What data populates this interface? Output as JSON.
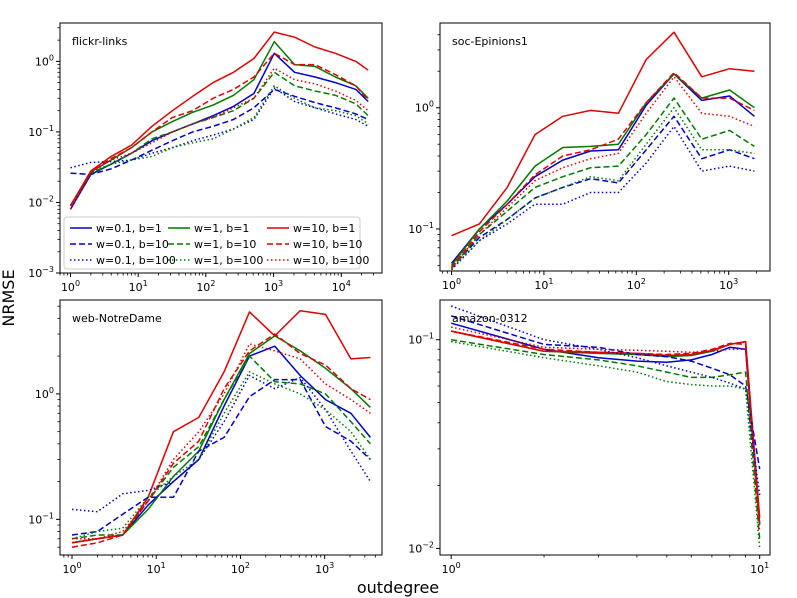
{
  "figure": {
    "ylabel": "NRMSE",
    "xlabel": "outdegree",
    "colors": {
      "w0.1": "#0000cc",
      "w1": "#007a00",
      "w10": "#e00000"
    }
  },
  "chart_data": [
    {
      "type": "line",
      "title": "flickr-links",
      "xscale": "log",
      "yscale": "log",
      "xlim": [
        0.7,
        40000
      ],
      "ylim": [
        0.001,
        3.5
      ],
      "xticks": [
        1,
        10,
        100,
        1000,
        10000
      ],
      "yticks": [
        0.001,
        0.01,
        0.1,
        1
      ],
      "xticklabels": [
        [
          "10",
          "0"
        ],
        [
          "10",
          "1"
        ],
        [
          "10",
          "2"
        ],
        [
          "10",
          "3"
        ],
        [
          "10",
          "4"
        ]
      ],
      "yticklabels": [
        [
          "10",
          "−3"
        ],
        [
          "10",
          "−2"
        ],
        [
          "10",
          "−1"
        ],
        [
          "10",
          "0"
        ]
      ],
      "x": [
        1,
        2,
        4,
        8,
        16,
        32,
        64,
        128,
        256,
        512,
        1024,
        2048,
        4096,
        8192,
        16384,
        25000
      ],
      "legend": {
        "location": "lower-left",
        "ncol": 3
      },
      "series": [
        {
          "name": "w=0.1, b=1",
          "color": "#0000cc",
          "dash": "solid",
          "values": [
            0.008,
            0.025,
            0.035,
            0.05,
            0.075,
            0.1,
            0.13,
            0.17,
            0.23,
            0.35,
            1.3,
            0.7,
            0.6,
            0.5,
            0.4,
            0.27
          ]
        },
        {
          "name": "w=1, b=1",
          "color": "#007a00",
          "dash": "solid",
          "values": [
            0.009,
            0.027,
            0.04,
            0.06,
            0.1,
            0.14,
            0.19,
            0.24,
            0.33,
            0.55,
            1.9,
            0.9,
            0.85,
            0.6,
            0.45,
            0.3
          ]
        },
        {
          "name": "w=10, b=1",
          "color": "#e00000",
          "dash": "solid",
          "values": [
            0.009,
            0.028,
            0.045,
            0.065,
            0.12,
            0.2,
            0.32,
            0.5,
            0.7,
            1.1,
            2.6,
            2.2,
            1.6,
            1.3,
            1.0,
            0.75
          ]
        },
        {
          "name": "w=0.1, b=10",
          "color": "#0000cc",
          "dash": "dashed",
          "values": [
            0.026,
            0.025,
            0.03,
            0.04,
            0.055,
            0.075,
            0.1,
            0.12,
            0.15,
            0.22,
            0.4,
            0.32,
            0.26,
            0.22,
            0.18,
            0.15
          ]
        },
        {
          "name": "w=1, b=10",
          "color": "#007a00",
          "dash": "dashed",
          "values": [
            0.009,
            0.026,
            0.035,
            0.05,
            0.08,
            0.1,
            0.13,
            0.16,
            0.2,
            0.3,
            0.7,
            0.45,
            0.38,
            0.33,
            0.25,
            0.17
          ]
        },
        {
          "name": "w=10, b=10",
          "color": "#e00000",
          "dash": "dashed",
          "values": [
            0.009,
            0.027,
            0.042,
            0.06,
            0.1,
            0.16,
            0.2,
            0.3,
            0.4,
            0.6,
            1.3,
            0.9,
            0.9,
            0.65,
            0.45,
            0.28
          ]
        },
        {
          "name": "w=0.1, b=100",
          "color": "#0000cc",
          "dash": "dotted",
          "values": [
            0.031,
            0.037,
            0.038,
            0.04,
            0.05,
            0.06,
            0.075,
            0.09,
            0.11,
            0.15,
            0.42,
            0.27,
            0.22,
            0.18,
            0.15,
            0.12
          ]
        },
        {
          "name": "w=1, b=100",
          "color": "#007a00",
          "dash": "dotted",
          "values": [
            0.008,
            0.027,
            0.035,
            0.04,
            0.045,
            0.06,
            0.07,
            0.08,
            0.11,
            0.16,
            0.45,
            0.3,
            0.22,
            0.2,
            0.17,
            0.13
          ]
        },
        {
          "name": "w=10, b=100",
          "color": "#e00000",
          "dash": "dotted",
          "values": [
            0.008,
            0.027,
            0.04,
            0.05,
            0.07,
            0.1,
            0.13,
            0.16,
            0.22,
            0.3,
            0.8,
            0.55,
            0.48,
            0.38,
            0.28,
            0.2
          ]
        }
      ]
    },
    {
      "type": "line",
      "title": "soc-Epinions1",
      "xscale": "log",
      "yscale": "log",
      "xlim": [
        0.75,
        2800
      ],
      "ylim": [
        0.045,
        5
      ],
      "xticks": [
        1,
        10,
        100,
        1000
      ],
      "yticks": [
        0.1,
        1
      ],
      "xticklabels": [
        [
          "10",
          "0"
        ],
        [
          "10",
          "1"
        ],
        [
          "10",
          "2"
        ],
        [
          "10",
          "3"
        ]
      ],
      "yticklabels": [
        [
          "10",
          "−1"
        ],
        [
          "10",
          "0"
        ]
      ],
      "x": [
        1,
        2,
        4,
        8,
        16,
        32,
        64,
        128,
        256,
        512,
        1024,
        1900
      ],
      "series": [
        {
          "name": "w=0.1, b=1",
          "color": "#0000cc",
          "dash": "solid",
          "values": [
            0.052,
            0.1,
            0.16,
            0.27,
            0.37,
            0.44,
            0.45,
            1.05,
            1.9,
            1.15,
            1.25,
            0.85
          ]
        },
        {
          "name": "w=1, b=1",
          "color": "#007a00",
          "dash": "solid",
          "values": [
            0.05,
            0.1,
            0.17,
            0.33,
            0.47,
            0.48,
            0.5,
            1.1,
            1.9,
            1.2,
            1.4,
            1.0
          ]
        },
        {
          "name": "w=10, b=1",
          "color": "#e00000",
          "dash": "solid",
          "values": [
            0.088,
            0.11,
            0.22,
            0.6,
            0.85,
            0.95,
            0.9,
            2.5,
            4.2,
            1.8,
            2.1,
            2.0
          ]
        },
        {
          "name": "w=0.1, b=10",
          "color": "#0000cc",
          "dash": "dashed",
          "values": [
            0.048,
            0.085,
            0.12,
            0.18,
            0.22,
            0.26,
            0.24,
            0.45,
            0.85,
            0.38,
            0.45,
            0.38
          ]
        },
        {
          "name": "w=1, b=10",
          "color": "#007a00",
          "dash": "dashed",
          "values": [
            0.047,
            0.09,
            0.14,
            0.22,
            0.27,
            0.32,
            0.33,
            0.6,
            1.2,
            0.55,
            0.65,
            0.48
          ]
        },
        {
          "name": "w=10, b=10",
          "color": "#e00000",
          "dash": "dashed",
          "values": [
            0.048,
            0.095,
            0.16,
            0.28,
            0.4,
            0.45,
            0.55,
            1.1,
            1.95,
            1.2,
            1.2,
            0.95
          ]
        },
        {
          "name": "w=0.1, b=100",
          "color": "#0000cc",
          "dash": "dotted",
          "values": [
            0.046,
            0.08,
            0.11,
            0.16,
            0.16,
            0.2,
            0.2,
            0.35,
            0.7,
            0.3,
            0.33,
            0.3
          ]
        },
        {
          "name": "w=1, b=100",
          "color": "#007a00",
          "dash": "dotted",
          "values": [
            0.047,
            0.08,
            0.12,
            0.18,
            0.22,
            0.27,
            0.25,
            0.5,
            1.0,
            0.45,
            0.45,
            0.42
          ]
        },
        {
          "name": "w=10, b=100",
          "color": "#e00000",
          "dash": "dotted",
          "values": [
            0.048,
            0.09,
            0.15,
            0.25,
            0.32,
            0.38,
            0.42,
            0.9,
            1.8,
            0.9,
            0.85,
            0.7
          ]
        }
      ]
    },
    {
      "type": "line",
      "title": "web-NotreDame",
      "xscale": "log",
      "yscale": "log",
      "xlim": [
        0.72,
        4800
      ],
      "ylim": [
        0.052,
        5.6
      ],
      "xticks": [
        1,
        10,
        100,
        1000
      ],
      "yticks": [
        0.1,
        1
      ],
      "xticklabels": [
        [
          "10",
          "0"
        ],
        [
          "10",
          "1"
        ],
        [
          "10",
          "2"
        ],
        [
          "10",
          "3"
        ]
      ],
      "yticklabels": [
        [
          "10",
          "−1"
        ],
        [
          "10",
          "0"
        ]
      ],
      "x": [
        1,
        2,
        4,
        8,
        16,
        32,
        64,
        128,
        256,
        512,
        1024,
        2048,
        3500
      ],
      "series": [
        {
          "name": "w=0.1, b=1",
          "color": "#0000cc",
          "dash": "solid",
          "values": [
            0.065,
            0.07,
            0.075,
            0.13,
            0.2,
            0.3,
            0.8,
            2.0,
            2.4,
            1.4,
            0.9,
            0.7,
            0.45
          ]
        },
        {
          "name": "w=1, b=1",
          "color": "#007a00",
          "dash": "solid",
          "values": [
            0.065,
            0.07,
            0.075,
            0.12,
            0.22,
            0.35,
            0.9,
            2.1,
            2.9,
            2.2,
            1.6,
            1.1,
            0.78
          ]
        },
        {
          "name": "w=10, b=1",
          "color": "#e00000",
          "dash": "solid",
          "values": [
            0.065,
            0.07,
            0.075,
            0.15,
            0.5,
            0.65,
            1.5,
            4.5,
            2.9,
            4.6,
            4.3,
            1.9,
            1.95
          ]
        },
        {
          "name": "w=0.1, b=10",
          "color": "#0000cc",
          "dash": "dashed",
          "values": [
            0.075,
            0.08,
            0.11,
            0.15,
            0.15,
            0.35,
            0.45,
            0.95,
            1.3,
            1.3,
            0.55,
            0.42,
            0.3
          ]
        },
        {
          "name": "w=1, b=10",
          "color": "#007a00",
          "dash": "dashed",
          "values": [
            0.07,
            0.075,
            0.075,
            0.14,
            0.26,
            0.38,
            0.9,
            2.0,
            1.25,
            1.2,
            1.0,
            0.6,
            0.4
          ]
        },
        {
          "name": "w=10, b=10",
          "color": "#e00000",
          "dash": "dashed",
          "values": [
            0.06,
            0.065,
            0.075,
            0.14,
            0.28,
            0.42,
            1.1,
            2.2,
            3.0,
            2.1,
            1.7,
            1.1,
            0.9
          ]
        },
        {
          "name": "w=0.1, b=100",
          "color": "#0000cc",
          "dash": "dotted",
          "values": [
            0.12,
            0.115,
            0.16,
            0.17,
            0.2,
            0.3,
            0.6,
            1.4,
            1.1,
            1.35,
            0.75,
            0.35,
            0.2
          ]
        },
        {
          "name": "w=1, b=100",
          "color": "#007a00",
          "dash": "dotted",
          "values": [
            0.07,
            0.08,
            0.085,
            0.15,
            0.22,
            0.3,
            0.7,
            1.5,
            1.2,
            1.0,
            0.75,
            0.5,
            0.3
          ]
        },
        {
          "name": "w=10, b=100",
          "color": "#e00000",
          "dash": "dotted",
          "values": [
            0.07,
            0.07,
            0.08,
            0.14,
            0.3,
            0.5,
            1.0,
            2.5,
            2.2,
            1.9,
            1.2,
            0.9,
            0.7
          ]
        }
      ]
    },
    {
      "type": "line",
      "title": "amazon-0312",
      "xscale": "log",
      "yscale": "log",
      "xlim": [
        0.92,
        10.8
      ],
      "ylim": [
        0.0093,
        0.155
      ],
      "xticks": [
        1,
        10
      ],
      "yticks": [
        0.01,
        0.1
      ],
      "xticklabels": [
        [
          "10",
          "0"
        ],
        [
          "10",
          "1"
        ]
      ],
      "yticklabels": [
        [
          "10",
          "−2"
        ],
        [
          "10",
          "−1"
        ]
      ],
      "x": [
        1,
        2,
        3,
        4,
        5,
        6,
        7,
        8,
        9,
        10
      ],
      "series": [
        {
          "name": "w=0.1, b=1",
          "color": "#0000cc",
          "dash": "solid",
          "values": [
            0.12,
            0.09,
            0.082,
            0.079,
            0.078,
            0.08,
            0.085,
            0.092,
            0.09,
            0.013
          ]
        },
        {
          "name": "w=1, b=1",
          "color": "#007a00",
          "dash": "solid",
          "values": [
            0.11,
            0.088,
            0.086,
            0.085,
            0.083,
            0.084,
            0.088,
            0.095,
            0.098,
            0.013
          ]
        },
        {
          "name": "w=10, b=1",
          "color": "#e00000",
          "dash": "solid",
          "values": [
            0.11,
            0.088,
            0.087,
            0.086,
            0.084,
            0.085,
            0.089,
            0.095,
            0.098,
            0.014
          ]
        },
        {
          "name": "w=0.1, b=10",
          "color": "#0000cc",
          "dash": "dashed",
          "values": [
            0.13,
            0.095,
            0.092,
            0.085,
            0.083,
            0.079,
            0.073,
            0.068,
            0.06,
            0.024
          ]
        },
        {
          "name": "w=1, b=10",
          "color": "#007a00",
          "dash": "dashed",
          "values": [
            0.1,
            0.085,
            0.08,
            0.075,
            0.07,
            0.066,
            0.066,
            0.068,
            0.07,
            0.011
          ]
        },
        {
          "name": "w=10, b=10",
          "color": "#e00000",
          "dash": "dashed",
          "values": [
            0.11,
            0.09,
            0.087,
            0.086,
            0.085,
            0.086,
            0.09,
            0.096,
            0.095,
            0.013
          ]
        },
        {
          "name": "w=0.1, b=100",
          "color": "#0000cc",
          "dash": "dotted",
          "values": [
            0.145,
            0.1,
            0.09,
            0.082,
            0.075,
            0.07,
            0.066,
            0.062,
            0.058,
            0.018
          ]
        },
        {
          "name": "w=1, b=100",
          "color": "#007a00",
          "dash": "dotted",
          "values": [
            0.098,
            0.082,
            0.075,
            0.07,
            0.063,
            0.061,
            0.06,
            0.06,
            0.058,
            0.01
          ]
        },
        {
          "name": "w=10, b=100",
          "color": "#e00000",
          "dash": "dotted",
          "values": [
            0.115,
            0.092,
            0.09,
            0.089,
            0.088,
            0.087,
            0.088,
            0.09,
            0.09,
            0.012
          ]
        }
      ]
    }
  ]
}
